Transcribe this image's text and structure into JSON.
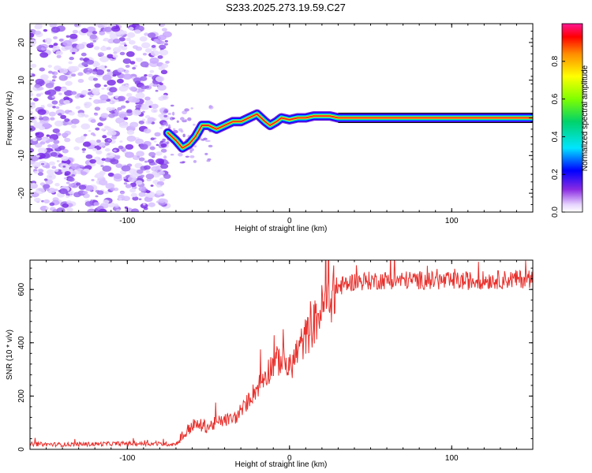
{
  "title": "S233.2025.273.19.59.C27",
  "colors": {
    "trace": "#e8302c",
    "axis": "#000000",
    "noise": "#8a2be2"
  },
  "chart_data": [
    {
      "type": "heatmap",
      "xlabel": "Height of straight line (km)",
      "ylabel": "Frequency (Hz)",
      "xlim": [
        -160,
        150
      ],
      "ylim": [
        -25,
        25
      ],
      "x_ticks": [
        -100,
        0,
        100
      ],
      "x_tick_labels": [
        "-100",
        "0",
        "100"
      ],
      "y_ticks": [
        -20,
        -10,
        0,
        10,
        20
      ],
      "y_tick_labels": [
        "-20",
        "-10",
        "0",
        "10",
        "20"
      ],
      "noise_region_x": [
        -160,
        -75
      ],
      "ridge": [
        {
          "x": -75,
          "y": -4
        },
        {
          "x": -70,
          "y": -6
        },
        {
          "x": -66,
          "y": -8
        },
        {
          "x": -62,
          "y": -7
        },
        {
          "x": -58,
          "y": -5
        },
        {
          "x": -54,
          "y": -2
        },
        {
          "x": -50,
          "y": -2
        },
        {
          "x": -45,
          "y": -3
        },
        {
          "x": -40,
          "y": -2
        },
        {
          "x": -35,
          "y": -1
        },
        {
          "x": -30,
          "y": -1
        },
        {
          "x": -25,
          "y": 0
        },
        {
          "x": -20,
          "y": 1
        },
        {
          "x": -15,
          "y": -1
        },
        {
          "x": -12,
          "y": -2
        },
        {
          "x": -8,
          "y": -1
        },
        {
          "x": -5,
          "y": 0
        },
        {
          "x": 0,
          "y": -0.5
        },
        {
          "x": 5,
          "y": 0
        },
        {
          "x": 10,
          "y": 0
        },
        {
          "x": 15,
          "y": 0.5
        },
        {
          "x": 20,
          "y": 0.5
        },
        {
          "x": 25,
          "y": 0.5
        },
        {
          "x": 30,
          "y": 0
        },
        {
          "x": 150,
          "y": 0
        }
      ],
      "colorbar": {
        "label": "Normalized spectral amplitude",
        "range": [
          0,
          1
        ],
        "ticks": [
          0.0,
          0.2,
          0.4,
          0.6,
          0.8
        ],
        "tick_labels": [
          "0.0",
          "0.2",
          "0.4",
          "0.6",
          "0.8"
        ]
      }
    },
    {
      "type": "line",
      "xlabel": "Height of straight line (km)",
      "ylabel": "SNR (10 * v/v)",
      "xlim": [
        -160,
        150
      ],
      "ylim": [
        0,
        710
      ],
      "x_ticks": [
        -100,
        0,
        100
      ],
      "x_tick_labels": [
        "-100",
        "0",
        "100"
      ],
      "y_ticks": [
        0,
        200,
        400,
        600
      ],
      "y_tick_labels": [
        "0",
        "200",
        "400",
        "600"
      ],
      "series": [
        {
          "name": "SNR",
          "x": [
            -160,
            -140,
            -120,
            -100,
            -80,
            -70,
            -65,
            -60,
            -55,
            -50,
            -45,
            -40,
            -35,
            -30,
            -25,
            -20,
            -15,
            -10,
            -5,
            0,
            5,
            10,
            15,
            20,
            25,
            30,
            40,
            60,
            80,
            100,
            120,
            150
          ],
          "values": [
            20,
            18,
            20,
            22,
            20,
            20,
            55,
            90,
            90,
            85,
            100,
            110,
            115,
            130,
            190,
            230,
            280,
            320,
            340,
            300,
            370,
            420,
            470,
            530,
            570,
            610,
            630,
            635,
            635,
            630,
            635,
            640
          ]
        }
      ]
    }
  ]
}
